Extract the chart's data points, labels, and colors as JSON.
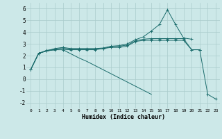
{
  "xlabel": "Humidex (Indice chaleur)",
  "background_color": "#cce8e8",
  "grid_color": "#aacccc",
  "line_color": "#1a6b6b",
  "x_data": [
    0,
    1,
    2,
    3,
    4,
    5,
    6,
    7,
    8,
    9,
    10,
    11,
    12,
    13,
    14,
    15,
    16,
    17,
    18,
    19,
    20,
    21,
    22,
    23
  ],
  "series": [
    [
      0.8,
      2.2,
      2.4,
      2.5,
      2.5,
      2.5,
      2.5,
      2.5,
      2.5,
      2.6,
      2.7,
      2.7,
      2.8,
      3.2,
      3.3,
      3.3,
      3.3,
      3.3,
      3.3,
      3.3,
      2.5,
      2.5,
      null,
      null
    ],
    [
      0.8,
      2.2,
      2.4,
      2.6,
      2.7,
      2.6,
      2.6,
      2.6,
      2.6,
      2.65,
      2.8,
      2.85,
      3.0,
      3.35,
      3.6,
      4.1,
      4.65,
      5.9,
      4.65,
      3.5,
      3.4,
      null,
      null,
      null
    ],
    [
      0.8,
      2.2,
      2.45,
      2.55,
      2.65,
      2.55,
      2.55,
      2.55,
      2.55,
      2.6,
      2.75,
      2.8,
      2.9,
      3.25,
      3.4,
      3.45,
      3.45,
      3.45,
      3.45,
      3.45,
      2.5,
      2.5,
      null,
      null
    ],
    [
      0.8,
      2.2,
      2.4,
      2.5,
      2.5,
      2.15,
      1.8,
      1.5,
      1.15,
      0.8,
      0.45,
      0.1,
      -0.25,
      -0.6,
      -0.95,
      -1.3,
      null,
      null,
      null,
      null,
      null,
      null,
      null,
      null
    ],
    [
      null,
      null,
      null,
      null,
      null,
      null,
      null,
      null,
      null,
      null,
      null,
      null,
      null,
      null,
      null,
      null,
      null,
      null,
      null,
      null,
      null,
      2.5,
      -1.3,
      -1.7
    ]
  ],
  "markers": [
    true,
    true,
    true,
    false,
    true
  ],
  "ylim": [
    -2.5,
    6.5
  ],
  "xlim": [
    -0.5,
    23.5
  ],
  "yticks": [
    -2,
    -1,
    0,
    1,
    2,
    3,
    4,
    5,
    6
  ],
  "xticks": [
    0,
    1,
    2,
    3,
    4,
    5,
    6,
    7,
    8,
    9,
    10,
    11,
    12,
    13,
    14,
    15,
    16,
    17,
    18,
    19,
    20,
    21,
    22,
    23
  ]
}
